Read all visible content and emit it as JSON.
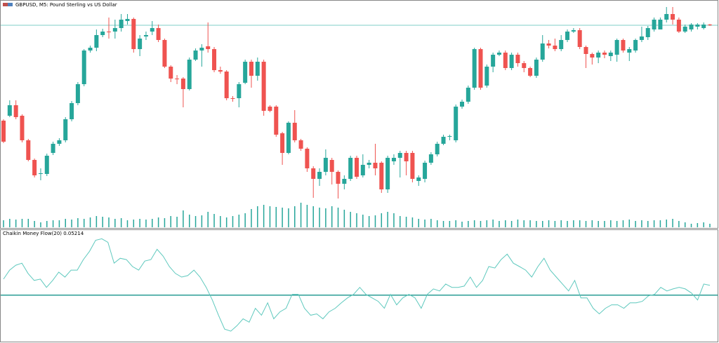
{
  "chart_data": [
    {
      "type": "candlestick",
      "title": "GBPUSD, M5: Pound Sterling vs US Dollar",
      "up_color": "#26a69a",
      "down_color": "#ef5350",
      "ylim": [
        0,
        325
      ],
      "price_line": 289,
      "price_line_color": "#7fcfc7",
      "volume_color": "#26a69a",
      "open": [
        153,
        160,
        175,
        160,
        125,
        97,
        77,
        77,
        107,
        120,
        125,
        155,
        178,
        205,
        253,
        257,
        275,
        280,
        280,
        285,
        295,
        298,
        255,
        273,
        280,
        285,
        268,
        230,
        213,
        213,
        198,
        240,
        253,
        259,
        255,
        225,
        223,
        185,
        185,
        207,
        237,
        217,
        237,
        173,
        173,
        135,
        107,
        150,
        125,
        113,
        85,
        70,
        80,
        97,
        80,
        63,
        70,
        100,
        75,
        90,
        93,
        93,
        55,
        95,
        100,
        107,
        107,
        67,
        70,
        93,
        105,
        120,
        130,
        125,
        173,
        180,
        200,
        255,
        203,
        230,
        247,
        250,
        228,
        247,
        235,
        228,
        217,
        240,
        263,
        260,
        255,
        268,
        280,
        282,
        258,
        248,
        243,
        250,
        245,
        247,
        268,
        250,
        253,
        268,
        272,
        283,
        283,
        297,
        305,
        297,
        280,
        283,
        287,
        285,
        290
      ],
      "high": [
        155,
        182,
        182,
        162,
        127,
        99,
        85,
        106,
        123,
        128,
        158,
        181,
        208,
        255,
        260,
        283,
        284,
        300,
        297,
        305,
        305,
        300,
        275,
        280,
        295,
        290,
        270,
        232,
        218,
        215,
        243,
        256,
        262,
        293,
        258,
        230,
        225,
        188,
        208,
        240,
        240,
        243,
        240,
        175,
        175,
        137,
        152,
        168,
        127,
        115,
        88,
        85,
        112,
        100,
        82,
        75,
        103,
        103,
        105,
        97,
        120,
        95,
        103,
        105,
        110,
        110,
        110,
        75,
        96,
        108,
        123,
        133,
        133,
        176,
        183,
        203,
        257,
        257,
        233,
        250,
        253,
        253,
        250,
        250,
        238,
        230,
        243,
        275,
        268,
        270,
        275,
        283,
        285,
        285,
        260,
        250,
        253,
        253,
        253,
        270,
        270,
        258,
        270,
        287,
        288,
        300,
        300,
        315,
        315,
        300,
        290,
        292,
        292,
        293,
        291
      ],
      "low": [
        121,
        158,
        155,
        122,
        95,
        72,
        68,
        74,
        104,
        117,
        122,
        152,
        175,
        202,
        250,
        252,
        272,
        270,
        270,
        280,
        290,
        250,
        245,
        268,
        275,
        265,
        228,
        208,
        205,
        172,
        196,
        238,
        230,
        250,
        222,
        220,
        182,
        180,
        172,
        205,
        200,
        210,
        160,
        165,
        130,
        90,
        105,
        122,
        110,
        80,
        43,
        60,
        75,
        62,
        42,
        55,
        67,
        70,
        72,
        85,
        75,
        50,
        50,
        90,
        72,
        75,
        65,
        60,
        65,
        90,
        102,
        118,
        125,
        122,
        170,
        177,
        197,
        197,
        200,
        222,
        245,
        225,
        225,
        230,
        222,
        215,
        214,
        237,
        256,
        252,
        252,
        265,
        278,
        255,
        228,
        233,
        235,
        242,
        238,
        237,
        250,
        238,
        250,
        265,
        268,
        280,
        285,
        293,
        290,
        278,
        278,
        280,
        283,
        283,
        288
      ],
      "close": [
        123,
        175,
        158,
        125,
        97,
        75,
        78,
        103,
        120,
        125,
        155,
        178,
        205,
        253,
        257,
        275,
        280,
        279,
        285,
        297,
        298,
        255,
        270,
        275,
        285,
        268,
        230,
        213,
        212,
        198,
        240,
        253,
        257,
        255,
        225,
        223,
        185,
        184,
        205,
        237,
        217,
        237,
        167,
        167,
        133,
        107,
        150,
        125,
        113,
        85,
        70,
        80,
        100,
        80,
        63,
        70,
        100,
        73,
        90,
        93,
        85,
        55,
        100,
        100,
        107,
        95,
        70,
        72,
        93,
        105,
        120,
        130,
        131,
        173,
        180,
        200,
        255,
        200,
        230,
        247,
        250,
        228,
        247,
        235,
        228,
        217,
        240,
        263,
        260,
        255,
        268,
        280,
        282,
        258,
        248,
        243,
        250,
        247,
        250,
        268,
        253,
        255,
        268,
        273,
        285,
        297,
        297,
        305,
        297,
        280,
        287,
        290,
        290,
        290,
        289
      ],
      "volume": [
        10,
        12,
        11,
        12,
        12,
        9,
        7,
        9,
        10,
        10,
        12,
        11,
        13,
        12,
        14,
        16,
        15,
        14,
        12,
        13,
        10,
        11,
        12,
        11,
        12,
        14,
        13,
        16,
        15,
        24,
        18,
        16,
        17,
        22,
        19,
        16,
        14,
        16,
        18,
        20,
        26,
        30,
        32,
        30,
        29,
        28,
        27,
        30,
        35,
        32,
        30,
        28,
        27,
        30,
        28,
        25,
        22,
        20,
        18,
        16,
        17,
        20,
        22,
        20,
        16,
        15,
        14,
        12,
        11,
        12,
        10,
        9,
        9,
        10,
        8,
        9,
        10,
        9,
        10,
        11,
        9,
        10,
        9,
        11,
        10,
        10,
        9,
        9,
        10,
        9,
        10,
        9,
        10,
        10,
        9,
        10,
        9,
        9,
        10,
        9,
        10,
        11,
        9,
        10,
        9,
        10,
        10,
        11,
        12,
        9,
        7,
        5,
        6,
        7,
        5
      ]
    },
    {
      "type": "line",
      "title": "Chaikin Money Flow(20) 0.05214",
      "color": "#5fc9be",
      "ylim": [
        -0.24,
        0.32
      ],
      "levels": [
        0
      ],
      "level_color": "#2a9d95",
      "values": [
        0.085,
        0.133,
        0.159,
        0.17,
        0.115,
        0.078,
        0.085,
        0.041,
        0.078,
        0.122,
        0.096,
        0.133,
        0.133,
        0.189,
        0.233,
        0.292,
        0.3,
        0.281,
        0.17,
        0.196,
        0.189,
        0.152,
        0.133,
        0.181,
        0.189,
        0.244,
        0.207,
        0.152,
        0.115,
        0.096,
        0.104,
        0.133,
        0.096,
        0.041,
        -0.026,
        -0.107,
        -0.181,
        -0.192,
        -0.163,
        -0.126,
        -0.144,
        -0.07,
        -0.107,
        -0.041,
        -0.126,
        -0.089,
        -0.07,
        0.004,
        0.004,
        -0.07,
        -0.107,
        -0.1,
        -0.126,
        -0.089,
        -0.07,
        -0.041,
        -0.015,
        0.004,
        0.041,
        0.004,
        -0.015,
        -0.033,
        -0.07,
        0.004,
        -0.052,
        -0.015,
        0.004,
        -0.015,
        -0.07,
        0.004,
        0.033,
        0.022,
        0.059,
        0.041,
        0.041,
        0.048,
        0.096,
        0.041,
        0.078,
        0.152,
        0.144,
        0.189,
        0.218,
        0.17,
        0.152,
        0.133,
        0.096,
        0.152,
        0.196,
        0.133,
        0.096,
        0.059,
        0.022,
        0.078,
        -0.015,
        -0.015,
        -0.07,
        -0.1,
        -0.07,
        -0.052,
        -0.052,
        -0.07,
        -0.041,
        -0.041,
        -0.033,
        -0.004,
        0.004,
        0.041,
        0.022,
        0.033,
        0.041,
        0.033,
        0.011,
        -0.026,
        0.059,
        0.05214
      ]
    }
  ]
}
